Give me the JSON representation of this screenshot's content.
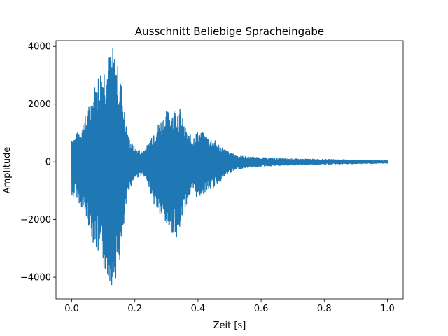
{
  "chart_data": {
    "type": "line",
    "title": "Ausschnitt Beliebige Spracheingabe",
    "xlabel": "Zeit [s]",
    "ylabel": "Amplitude",
    "xlim": [
      -0.05,
      1.05
    ],
    "ylim": [
      -4750,
      4200
    ],
    "xticks": [
      0.0,
      0.2,
      0.4,
      0.6,
      0.8,
      1.0
    ],
    "xtick_labels": [
      "0.0",
      "0.2",
      "0.4",
      "0.6",
      "0.8",
      "1.0"
    ],
    "yticks": [
      -4000,
      -2000,
      0,
      2000,
      4000
    ],
    "ytick_labels": [
      "−4000",
      "−2000",
      "0",
      "2000",
      "4000"
    ],
    "grid": false,
    "series_color": "#1f77b4",
    "envelope": {
      "t": [
        0.0,
        0.01,
        0.03,
        0.05,
        0.07,
        0.09,
        0.11,
        0.13,
        0.15,
        0.16,
        0.17,
        0.18,
        0.2,
        0.22,
        0.24,
        0.26,
        0.28,
        0.3,
        0.32,
        0.34,
        0.35,
        0.36,
        0.37,
        0.38,
        0.4,
        0.42,
        0.45,
        0.48,
        0.5,
        0.52,
        0.55,
        0.58,
        0.62,
        0.66,
        0.7,
        0.75,
        0.8,
        0.85,
        0.9,
        0.95,
        1.0
      ],
      "upper": [
        1000,
        900,
        1300,
        1800,
        2600,
        3300,
        3600,
        4000,
        3200,
        2600,
        1500,
        900,
        500,
        400,
        600,
        1200,
        1500,
        1800,
        1900,
        2000,
        1600,
        1200,
        1000,
        900,
        1100,
        1000,
        800,
        500,
        350,
        250,
        200,
        180,
        150,
        130,
        120,
        110,
        100,
        90,
        80,
        70,
        60
      ],
      "lower": [
        -1400,
        -1100,
        -1600,
        -2100,
        -2900,
        -3500,
        -4000,
        -4350,
        -3700,
        -3000,
        -1800,
        -1000,
        -600,
        -500,
        -700,
        -1500,
        -1900,
        -2300,
        -2500,
        -2700,
        -2000,
        -1600,
        -1300,
        -1100,
        -1300,
        -1100,
        -900,
        -600,
        -400,
        -300,
        -220,
        -190,
        -160,
        -140,
        -130,
        -115,
        -100,
        -90,
        -80,
        -70,
        -60
      ]
    }
  }
}
